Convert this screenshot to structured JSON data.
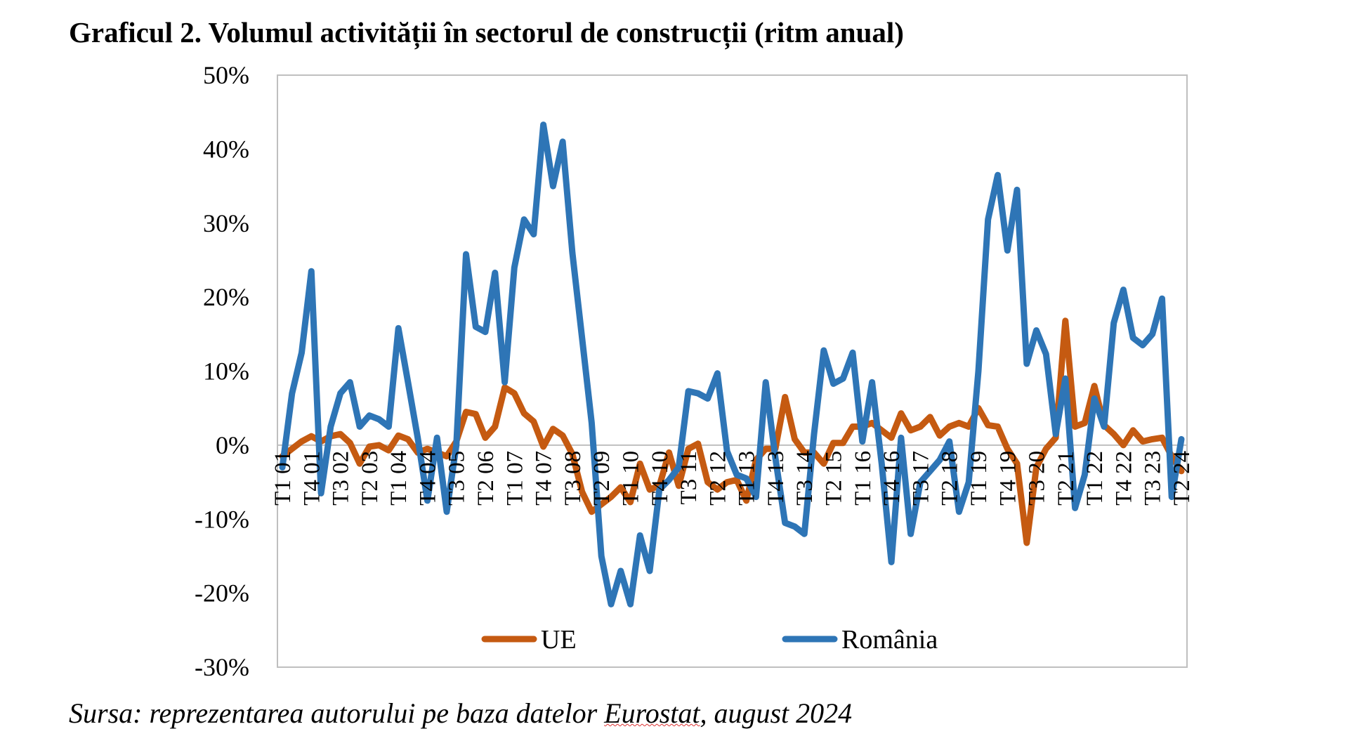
{
  "title": "Graficul 2. Volumul activității în sectorul de construcții (ritm anual)",
  "source": {
    "prefix": "Sursa: reprezentarea autorului pe baza datelor ",
    "underlined": "Eurostat",
    "suffix": ", august 2024"
  },
  "chart_data": {
    "type": "line",
    "ylim": [
      -30,
      50
    ],
    "yticks": [
      50,
      40,
      30,
      20,
      10,
      0,
      -10,
      -20,
      -30
    ],
    "ytick_labels": [
      "50%",
      "40%",
      "30%",
      "20%",
      "10%",
      "0%",
      "-10%",
      "-20%",
      "-30%"
    ],
    "xtick_labels": [
      {
        "label": "T1 01",
        "index": 0
      },
      {
        "label": "T4 01",
        "index": 3
      },
      {
        "label": "T3 02",
        "index": 6
      },
      {
        "label": "T2 03",
        "index": 9
      },
      {
        "label": "T1 04",
        "index": 12
      },
      {
        "label": "T4 04",
        "index": 15
      },
      {
        "label": "T3 05",
        "index": 18
      },
      {
        "label": "T2 06",
        "index": 21
      },
      {
        "label": "T1 07",
        "index": 24
      },
      {
        "label": "T4 07",
        "index": 27
      },
      {
        "label": "T3 08",
        "index": 30
      },
      {
        "label": "T2 09",
        "index": 33
      },
      {
        "label": "T1 10",
        "index": 36
      },
      {
        "label": "T4 10",
        "index": 39
      },
      {
        "label": "T3 11",
        "index": 42
      },
      {
        "label": "T2 12",
        "index": 45
      },
      {
        "label": "T1 13",
        "index": 48
      },
      {
        "label": "T4 13",
        "index": 51
      },
      {
        "label": "T3 14",
        "index": 54
      },
      {
        "label": "T2 15",
        "index": 57
      },
      {
        "label": "T1 16",
        "index": 60
      },
      {
        "label": "T4 16",
        "index": 63
      },
      {
        "label": "T3 17",
        "index": 66
      },
      {
        "label": "T2 18",
        "index": 69
      },
      {
        "label": "T1 19",
        "index": 72
      },
      {
        "label": "T4 19",
        "index": 75
      },
      {
        "label": "T3 20",
        "index": 78
      },
      {
        "label": "T2 21",
        "index": 81
      },
      {
        "label": "T1 22",
        "index": 84
      },
      {
        "label": "T4 22",
        "index": 87
      },
      {
        "label": "T3 23",
        "index": 90
      },
      {
        "label": "T2 24",
        "index": 93
      }
    ],
    "point_count": 94,
    "series": [
      {
        "name": "UE",
        "color": "#c55a11",
        "values": [
          -1.5,
          -0.5,
          0.5,
          1.2,
          0.5,
          1.2,
          1.5,
          0.3,
          -2.5,
          -0.2,
          0,
          -0.7,
          1.3,
          0.8,
          -1,
          -0.5,
          -1,
          -1.5,
          0.5,
          4.5,
          4.2,
          1,
          2.5,
          7.8,
          7,
          4.3,
          3.2,
          -0.2,
          2.2,
          1.3,
          -1.2,
          -6.3,
          -9,
          -8,
          -7,
          -5.7,
          -7.7,
          -2.5,
          -6,
          -5.5,
          -1,
          -5.5,
          -0.5,
          0.2,
          -5,
          -6,
          -5,
          -4.7,
          -7.5,
          -2,
          -0.5,
          -0.5,
          6.5,
          0.8,
          -1,
          -1,
          -2.5,
          0.3,
          0.3,
          2.5,
          2.5,
          3,
          2,
          1,
          4.3,
          2,
          2.5,
          3.8,
          1.3,
          2.5,
          3,
          2.5,
          5,
          2.7,
          2.5,
          -0.5,
          -2.5,
          -13.2,
          -3,
          -0.5,
          1,
          16.8,
          2.5,
          3,
          8,
          2.7,
          1.5,
          0,
          2,
          0.5,
          0.8,
          1,
          -1.5,
          -3.5
        ]
      },
      {
        "name": "România",
        "color": "#2e75b6",
        "values": [
          -3,
          7,
          12.5,
          23.5,
          -6.5,
          2.5,
          7,
          8.5,
          2.5,
          4,
          3.5,
          2.5,
          15.8,
          8.5,
          1,
          -7.5,
          1,
          -9,
          0,
          25.8,
          16,
          15.3,
          23.3,
          8.5,
          24,
          30.5,
          28.5,
          43.3,
          35,
          41,
          26,
          14.5,
          3,
          -15,
          -21.5,
          -17,
          -21.5,
          -12.2,
          -17,
          -6,
          -4.7,
          -3,
          7.3,
          7,
          6.3,
          9.7,
          -0.8,
          -4,
          -4.5,
          -7,
          8.5,
          -1.7,
          -10.5,
          -11,
          -12,
          1.5,
          12.8,
          8.3,
          9,
          12.5,
          0.5,
          8.5,
          -2.5,
          -15.8,
          1,
          -12,
          -5,
          -3.5,
          -2,
          0.5,
          -9,
          -5,
          10,
          30.5,
          36.5,
          26.3,
          34.5,
          11,
          15.5,
          12.3,
          1.5,
          9,
          -8.5,
          -4,
          6.3,
          2.5,
          16.5,
          21,
          14.5,
          13.5,
          15,
          19.8,
          -7,
          0.8
        ]
      }
    ],
    "legend": {
      "placement": "bottom-inside",
      "entries": [
        "UE",
        "România"
      ]
    },
    "grid": false
  }
}
